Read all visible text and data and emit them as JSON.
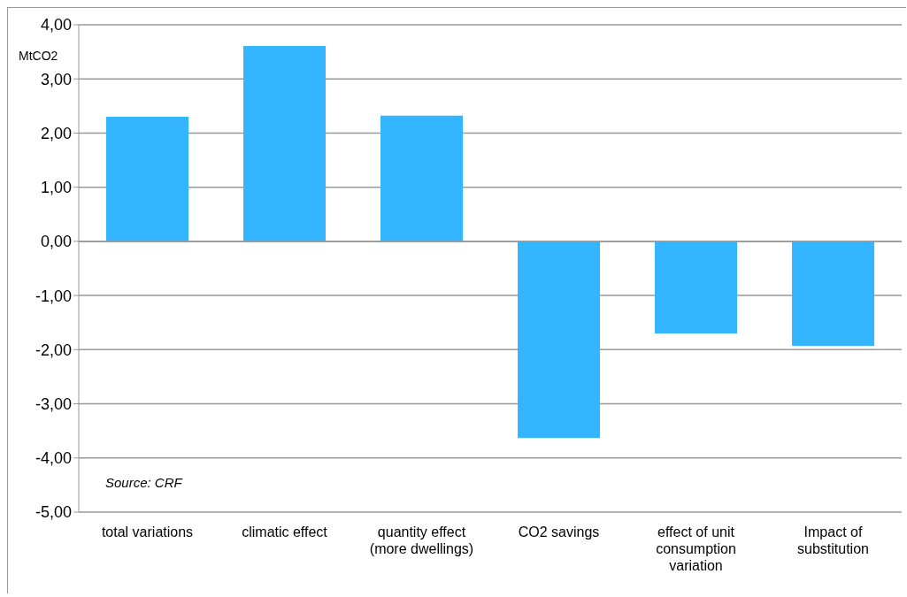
{
  "chart_data": {
    "type": "bar",
    "ylabel": "MtCO2",
    "categories": [
      "total variations",
      "climatic effect",
      "quantity effect (more dwellings)",
      "CO2 savings",
      "effect of unit consumption variation",
      "Impact of substitution"
    ],
    "values": [
      2.3,
      3.61,
      2.32,
      -3.63,
      -1.7,
      -1.93
    ],
    "color": "#33b5ff",
    "ylim": [
      -5,
      4
    ],
    "yticks": [
      {
        "value": -5,
        "label": "-5,00"
      },
      {
        "value": -4,
        "label": "-4,00"
      },
      {
        "value": -3,
        "label": "-3,00"
      },
      {
        "value": -2,
        "label": "-2,00"
      },
      {
        "value": -1,
        "label": "-1,00"
      },
      {
        "value": 0,
        "label": "0,00"
      },
      {
        "value": 1,
        "label": "1,00"
      },
      {
        "value": 2,
        "label": "2,00"
      },
      {
        "value": 3,
        "label": "3,00"
      },
      {
        "value": 4,
        "label": "4,00"
      }
    ],
    "grid": "y",
    "annotations": [
      "Source: CRF"
    ]
  }
}
